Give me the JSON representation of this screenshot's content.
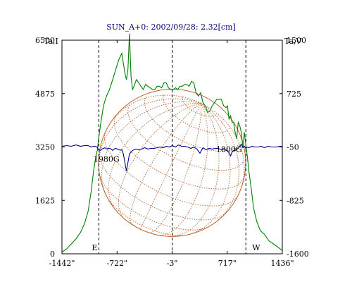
{
  "chart_data": {
    "type": "line",
    "title": "SUN_A+0: 2002/09/28: 2.32[cm]",
    "left_axis_label": "Ta,I",
    "right_axis_label": "Ta,V",
    "xlabel": "",
    "x_ticks": [
      -1442,
      -722,
      -3,
      717,
      1436
    ],
    "x_tick_labels": [
      "-1442\"",
      "-722\"",
      "-3\"",
      "717\"",
      "1436\""
    ],
    "xlim": [
      -1442,
      1436
    ],
    "left_ticks": [
      0,
      1625,
      3250,
      4875,
      6500
    ],
    "left_tick_labels": [
      "0",
      "1625",
      "3250",
      "4875",
      "6500"
    ],
    "ylim_left": [
      0,
      6500
    ],
    "right_ticks": [
      -1600,
      -825,
      -50,
      725,
      1500
    ],
    "right_tick_labels": [
      "-1600",
      "-825",
      "-50",
      "725",
      "1500"
    ],
    "ylim_right": [
      -1600,
      1500
    ],
    "markers": [
      {
        "label": "E",
        "x": -960
      },
      {
        "label": "",
        "x": -3
      },
      {
        "label": "W",
        "x": 960
      }
    ],
    "annotations": [
      {
        "label": "1980G",
        "x": -860,
        "y": 2800
      },
      {
        "label": "1800G",
        "x": 740,
        "y": 3100
      }
    ],
    "solar_disk": {
      "center_x": -3,
      "radius_arcsec": 960,
      "color": "#b8622f"
    },
    "series": [
      {
        "axis": "left",
        "color": "#008000",
        "x": [
          -1442,
          -1380,
          -1320,
          -1260,
          -1200,
          -1150,
          -1100,
          -1060,
          -1030,
          -1000,
          -980,
          -960,
          -940,
          -920,
          -900,
          -860,
          -820,
          -780,
          -740,
          -700,
          -660,
          -620,
          -600,
          -580,
          -560,
          -540,
          -520,
          -500,
          -470,
          -440,
          -410,
          -380,
          -350,
          -320,
          -290,
          -260,
          -230,
          -200,
          -170,
          -140,
          -110,
          -80,
          -50,
          -20,
          10,
          40,
          70,
          100,
          130,
          160,
          190,
          220,
          250,
          280,
          310,
          340,
          370,
          400,
          430,
          460,
          490,
          520,
          550,
          580,
          610,
          640,
          670,
          700,
          720,
          740,
          760,
          780,
          800,
          820,
          840,
          860,
          880,
          900,
          920,
          940,
          960,
          980,
          1000,
          1030,
          1060,
          1100,
          1150,
          1200,
          1260,
          1320,
          1380,
          1436
        ],
        "y": [
          50,
          150,
          300,
          450,
          650,
          900,
          1300,
          1900,
          2500,
          2950,
          3150,
          3550,
          3900,
          4200,
          4500,
          4800,
          5000,
          5300,
          5600,
          5900,
          6100,
          5500,
          5300,
          5600,
          6700,
          5400,
          5000,
          5100,
          5300,
          5200,
          5100,
          5000,
          5150,
          5100,
          5050,
          5000,
          5000,
          5100,
          5100,
          5050,
          5200,
          5200,
          5050,
          5000,
          5000,
          5050,
          5000,
          5100,
          5100,
          5150,
          5150,
          5100,
          5250,
          5200,
          4900,
          4800,
          4900,
          4600,
          4500,
          4300,
          4350,
          4500,
          4600,
          4700,
          4700,
          4700,
          4500,
          4450,
          4500,
          4100,
          4200,
          4000,
          4000,
          3700,
          3500,
          4000,
          3900,
          3700,
          3250,
          3700,
          3300,
          2950,
          2500,
          2000,
          1400,
          1000,
          700,
          600,
          400,
          300,
          200,
          100
        ]
      },
      {
        "axis": "right",
        "color": "#00008b",
        "x": [
          -1442,
          -1380,
          -1320,
          -1260,
          -1200,
          -1150,
          -1100,
          -1060,
          -1030,
          -1000,
          -980,
          -960,
          -940,
          -920,
          -900,
          -880,
          -860,
          -840,
          -820,
          -800,
          -780,
          -760,
          -740,
          -720,
          -700,
          -680,
          -660,
          -640,
          -600,
          -560,
          -520,
          -480,
          -440,
          -400,
          -360,
          -320,
          -280,
          -240,
          -200,
          -160,
          -120,
          -80,
          -40,
          0,
          40,
          80,
          120,
          160,
          200,
          240,
          280,
          320,
          360,
          400,
          440,
          480,
          520,
          560,
          600,
          640,
          680,
          720,
          740,
          760,
          780,
          800,
          820,
          840,
          860,
          880,
          900,
          920,
          940,
          960,
          980,
          1000,
          1040,
          1080,
          1120,
          1160,
          1200,
          1250,
          1300,
          1350,
          1400,
          1436
        ],
        "y": [
          -40,
          -30,
          -40,
          -20,
          -40,
          -30,
          -30,
          -50,
          -40,
          -40,
          -60,
          -90,
          -100,
          -80,
          -70,
          -60,
          -80,
          -70,
          -70,
          -80,
          -100,
          -80,
          -70,
          -80,
          -90,
          -95,
          -90,
          -150,
          -400,
          -150,
          -100,
          -80,
          -90,
          -80,
          -60,
          -80,
          -70,
          -70,
          -60,
          -50,
          -60,
          -40,
          -50,
          -30,
          -50,
          -20,
          -40,
          -40,
          -50,
          -70,
          -50,
          -80,
          -140,
          -60,
          -90,
          -70,
          -80,
          -70,
          -70,
          -90,
          -80,
          -110,
          -130,
          -180,
          -120,
          -100,
          -100,
          -80,
          -70,
          -40,
          -10,
          -60,
          -40,
          -70,
          -50,
          -60,
          -40,
          -50,
          -50,
          -40,
          -60,
          -40,
          -50,
          -50,
          -40,
          -40
        ]
      }
    ],
    "grid": false
  }
}
